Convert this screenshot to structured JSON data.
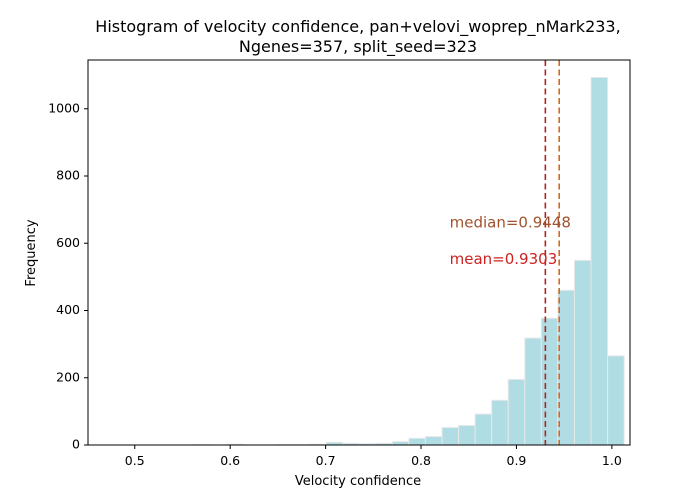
{
  "chart_data": {
    "type": "bar",
    "title_lines": [
      "Histogram of velocity confidence, pan+velovi_woprep_nMark233,",
      "Ngenes=357, split_seed=323"
    ],
    "xlabel": "Velocity confidence",
    "ylabel": "Frequency",
    "xlim": [
      0.451,
      1.019
    ],
    "ylim": [
      0,
      1145
    ],
    "xticks": [
      0.5,
      0.6,
      0.7,
      0.8,
      0.9,
      1.0
    ],
    "xtick_labels": [
      "0.5",
      "0.6",
      "0.7",
      "0.8",
      "0.9",
      "1.0"
    ],
    "yticks": [
      0,
      200,
      400,
      600,
      800,
      1000
    ],
    "ytick_labels": [
      "0",
      "200",
      "400",
      "600",
      "800",
      "1000"
    ],
    "bin_start": 0.475,
    "bin_width": 0.01735,
    "counts": [
      0,
      0,
      0,
      0,
      0,
      1,
      0,
      2,
      0,
      0,
      1,
      1,
      2,
      8,
      5,
      4,
      5,
      10,
      20,
      25,
      52,
      58,
      92,
      133,
      195,
      318,
      377,
      460,
      549,
      1093,
      265
    ],
    "bar_color": "#b0dde4",
    "bar_edge_color": "#e8e8e8",
    "median_line": {
      "x": 0.9448,
      "color": "#d2691e",
      "label": "median=0.9448",
      "label_color": "#a0522d"
    },
    "mean_line": {
      "x": 0.9303,
      "color": "#b22222",
      "label": "mean=0.9303",
      "label_color": "#cc2222"
    },
    "annotation_x": 0.83,
    "median_label_y": 660,
    "mean_label_y": 552,
    "grid": false,
    "legend": "none"
  }
}
